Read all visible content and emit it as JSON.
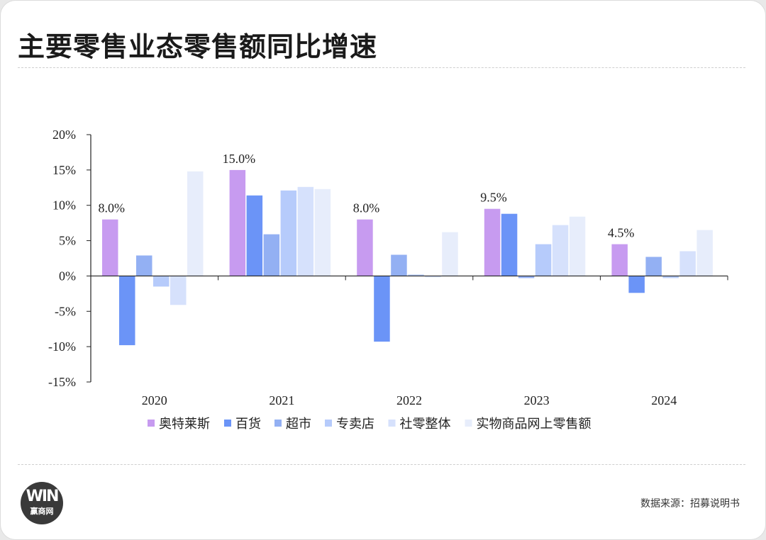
{
  "page": {
    "title": "主要零售业态零售额同比增速",
    "source": "数据来源：招募说明书",
    "logo_text": "赢商网",
    "logo_mark": "WIN"
  },
  "chart_data": {
    "type": "bar",
    "title": "",
    "xlabel": "",
    "ylabel": "",
    "categories": [
      "2020",
      "2021",
      "2022",
      "2023",
      "2024"
    ],
    "ylim": [
      -15,
      20
    ],
    "yticks": [
      20,
      15,
      10,
      5,
      0,
      -5,
      -10,
      -15
    ],
    "ytick_labels": [
      "20%",
      "15%",
      "10%",
      "5%",
      "0%",
      "-5%",
      "-10%",
      "-15%"
    ],
    "grid": false,
    "legend_position": "bottom",
    "series": [
      {
        "name": "奥特莱斯",
        "color": "#c79bf0",
        "values": [
          8.0,
          15.0,
          8.0,
          9.5,
          4.5
        ]
      },
      {
        "name": "百货",
        "color": "#6b94f7",
        "values": [
          -9.8,
          11.4,
          -9.3,
          8.8,
          -2.4
        ]
      },
      {
        "name": "超市",
        "color": "#93b0f3",
        "values": [
          2.9,
          5.9,
          3.0,
          -0.3,
          2.7
        ]
      },
      {
        "name": "专卖店",
        "color": "#b6cbfb",
        "values": [
          -1.5,
          12.1,
          0.2,
          4.5,
          -0.3
        ]
      },
      {
        "name": "社零整体",
        "color": "#d6e1fc",
        "values": [
          -4.1,
          12.6,
          -0.2,
          7.2,
          3.5
        ]
      },
      {
        "name": "实物商品网上零售额",
        "color": "#e7edfb",
        "values": [
          14.8,
          12.3,
          6.2,
          8.4,
          6.5
        ]
      }
    ],
    "annotations": [
      {
        "category": "2020",
        "series": "奥特莱斯",
        "text": "8.0%"
      },
      {
        "category": "2021",
        "series": "奥特莱斯",
        "text": "15.0%"
      },
      {
        "category": "2022",
        "series": "奥特莱斯",
        "text": "8.0%"
      },
      {
        "category": "2023",
        "series": "奥特莱斯",
        "text": "9.5%"
      },
      {
        "category": "2024",
        "series": "奥特莱斯",
        "text": "4.5%"
      }
    ]
  }
}
